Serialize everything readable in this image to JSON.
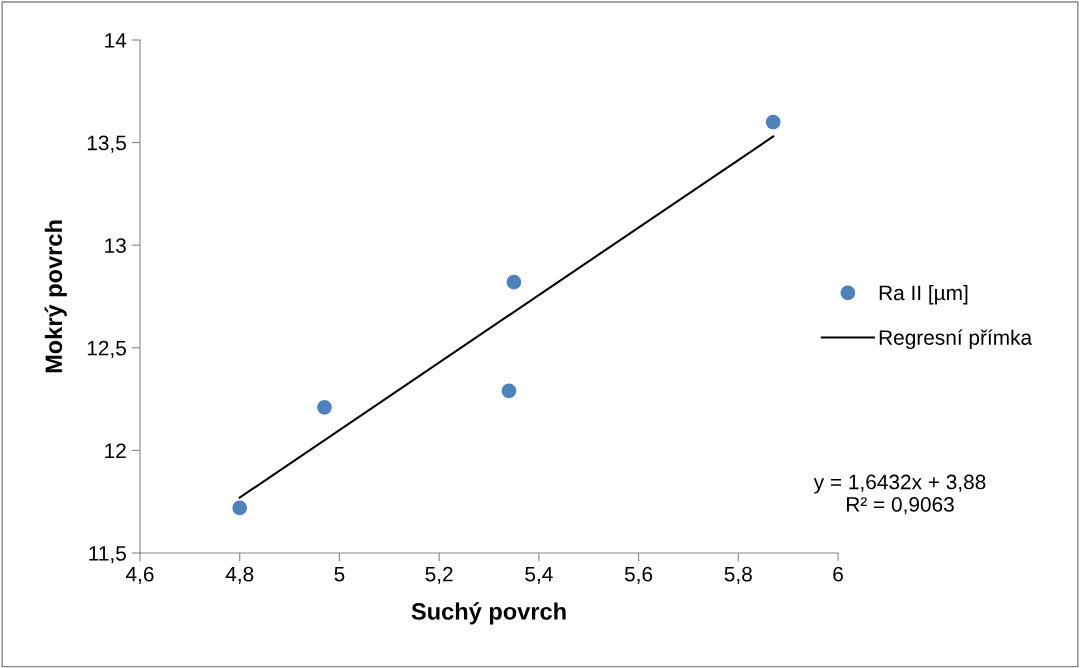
{
  "chart_data": {
    "type": "scatter",
    "xlabel": "Suchý povrch",
    "ylabel": "Mokrý povrch",
    "xlim": [
      4.6,
      6
    ],
    "ylim": [
      11.5,
      14
    ],
    "xticks": [
      {
        "value": 4.6,
        "label": "4,6"
      },
      {
        "value": 4.8,
        "label": "4,8"
      },
      {
        "value": 5,
        "label": "5"
      },
      {
        "value": 5.2,
        "label": "5,2"
      },
      {
        "value": 5.4,
        "label": "5,4"
      },
      {
        "value": 5.6,
        "label": "5,6"
      },
      {
        "value": 5.8,
        "label": "5,8"
      },
      {
        "value": 6,
        "label": "6"
      }
    ],
    "yticks": [
      {
        "value": 11.5,
        "label": "11,5"
      },
      {
        "value": 12,
        "label": "12"
      },
      {
        "value": 12.5,
        "label": "12,5"
      },
      {
        "value": 13,
        "label": "13"
      },
      {
        "value": 13.5,
        "label": "13,5"
      },
      {
        "value": 14,
        "label": "14"
      }
    ],
    "grid": false,
    "legend": "right",
    "series": [
      {
        "name": "Ra II [µm]",
        "color": "#4f81bd",
        "marker": "circle",
        "x": [
          4.8,
          4.97,
          5.34,
          5.35,
          5.87
        ],
        "values": [
          11.72,
          12.21,
          12.29,
          12.82,
          13.6
        ]
      },
      {
        "name": "Regresní přímka",
        "type": "line",
        "color": "#000000",
        "x": [
          4.8,
          5.87
        ],
        "values": [
          11.77,
          13.53
        ]
      }
    ],
    "annotations": [
      "y = 1,6432x + 3,88\nR² = 0,9063"
    ]
  }
}
